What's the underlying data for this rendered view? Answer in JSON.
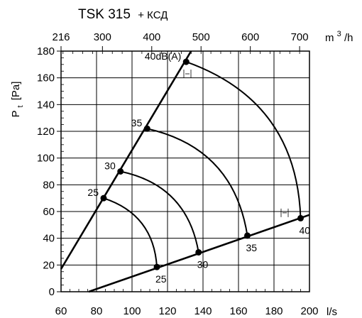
{
  "chart_data": {
    "type": "line",
    "title": "TSK 315",
    "title_suffix": "+ КСД",
    "x_primary": {
      "unit": "l/s",
      "range": [
        60,
        200
      ],
      "ticks": [
        "60",
        "80",
        "100",
        "120",
        "140",
        "160",
        "180",
        "200"
      ],
      "minor_step": 5
    },
    "x_secondary": {
      "unit_base": "m",
      "unit_sup": "3",
      "unit_tail": "/h",
      "ticks": [
        {
          "label": "216",
          "ls": 60
        },
        {
          "label": "300",
          "ls": 83.33
        },
        {
          "label": "400",
          "ls": 111.11
        },
        {
          "label": "500",
          "ls": 138.89
        },
        {
          "label": "600",
          "ls": 166.67
        },
        {
          "label": "700",
          "ls": 194.44
        }
      ],
      "minor_step_m3h": 20
    },
    "y_axis": {
      "label_main": "P",
      "label_sub": "t",
      "label_unit": "[Pa]",
      "range": [
        0,
        180
      ],
      "ticks": [
        "0",
        "20",
        "40",
        "60",
        "80",
        "100",
        "120",
        "140",
        "160",
        "180"
      ],
      "minor_step": 5
    },
    "system_lines": [
      {
        "name": "max",
        "points": [
          [
            60,
            17
          ],
          [
            133.3,
            180
          ]
        ]
      },
      {
        "name": "min",
        "points": [
          [
            75.6,
            0
          ],
          [
            200,
            57.5
          ]
        ]
      }
    ],
    "sound_curves": [
      {
        "label": "25",
        "top_label": "25",
        "top": [
          84,
          70
        ],
        "bottom": [
          114,
          18.5
        ],
        "bulge": 0.17
      },
      {
        "label": "30",
        "top_label": "30",
        "top": [
          93.5,
          90
        ],
        "bottom": [
          137.5,
          29.5
        ],
        "bulge": 0.17
      },
      {
        "label": "35",
        "top_label": "35",
        "top": [
          108.5,
          122
        ],
        "bottom": [
          165,
          42
        ],
        "bulge": 0.17
      },
      {
        "label": "40",
        "top_label": "40dB(A)",
        "top": [
          130.5,
          172
        ],
        "bottom": [
          195,
          55
        ],
        "bulge": 0.17
      }
    ]
  }
}
